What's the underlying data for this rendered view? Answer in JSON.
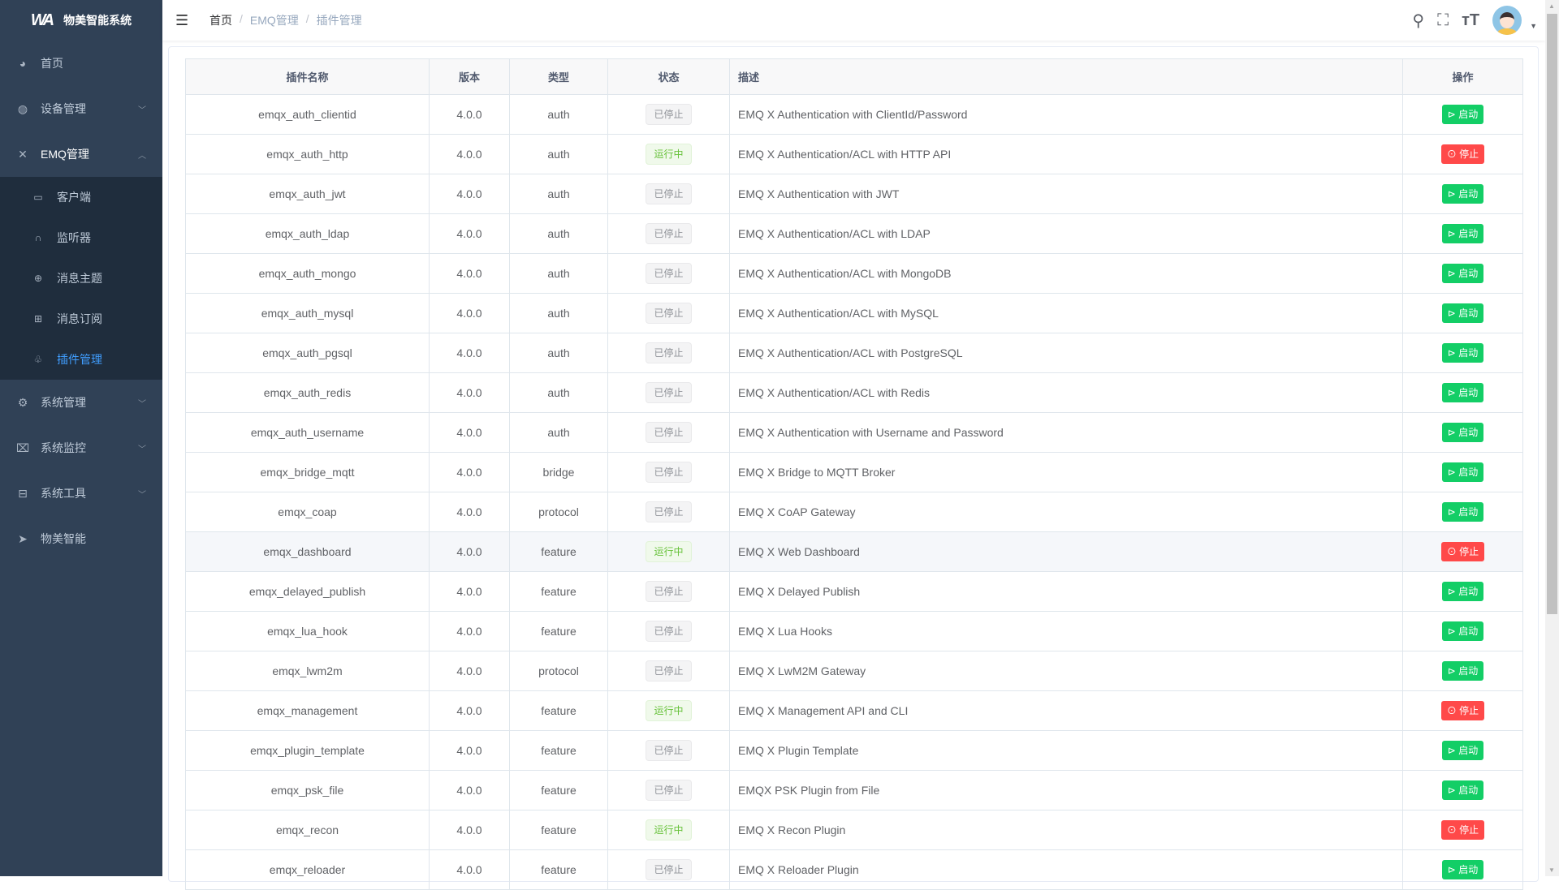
{
  "app": {
    "title": "物美智能系统",
    "logo": "WA"
  },
  "sidebar": {
    "items": [
      {
        "label": "首页",
        "icon": "dashboard-icon",
        "glyph": "◕"
      },
      {
        "label": "设备管理",
        "icon": "device-icon",
        "glyph": "◍",
        "chevron": "﹀"
      },
      {
        "label": "EMQ管理",
        "icon": "emq-icon",
        "glyph": "✕",
        "chevron": "︿",
        "open": true,
        "children": [
          {
            "label": "客户端",
            "icon": "client-icon",
            "glyph": "▭"
          },
          {
            "label": "监听器",
            "icon": "headset-icon",
            "glyph": "∩"
          },
          {
            "label": "消息主题",
            "icon": "topic-icon",
            "glyph": "⊕"
          },
          {
            "label": "消息订阅",
            "icon": "subscribe-icon",
            "glyph": "⊞"
          },
          {
            "label": "插件管理",
            "icon": "plugin-icon",
            "glyph": "♧",
            "active": true
          }
        ]
      },
      {
        "label": "系统管理",
        "icon": "gear-icon",
        "glyph": "⚙",
        "chevron": "﹀"
      },
      {
        "label": "系统监控",
        "icon": "monitor-icon",
        "glyph": "⌧",
        "chevron": "﹀"
      },
      {
        "label": "系统工具",
        "icon": "toolbox-icon",
        "glyph": "⊟",
        "chevron": "﹀"
      },
      {
        "label": "物美智能",
        "icon": "paper-plane-icon",
        "glyph": "➤"
      }
    ]
  },
  "header": {
    "breadcrumb": [
      "首页",
      "EMQ管理",
      "插件管理"
    ],
    "separator": "/"
  },
  "table": {
    "columns": [
      "插件名称",
      "版本",
      "类型",
      "状态",
      "描述",
      "操作"
    ],
    "rows": [
      [
        "emqx_auth_clientid",
        "4.0.0",
        "auth",
        "已停止",
        "EMQ X Authentication with ClientId/Password"
      ],
      [
        "emqx_auth_http",
        "4.0.0",
        "auth",
        "运行中",
        "EMQ X Authentication/ACL with HTTP API"
      ],
      [
        "emqx_auth_jwt",
        "4.0.0",
        "auth",
        "已停止",
        "EMQ X Authentication with JWT"
      ],
      [
        "emqx_auth_ldap",
        "4.0.0",
        "auth",
        "已停止",
        "EMQ X Authentication/ACL with LDAP"
      ],
      [
        "emqx_auth_mongo",
        "4.0.0",
        "auth",
        "已停止",
        "EMQ X Authentication/ACL with MongoDB"
      ],
      [
        "emqx_auth_mysql",
        "4.0.0",
        "auth",
        "已停止",
        "EMQ X Authentication/ACL with MySQL"
      ],
      [
        "emqx_auth_pgsql",
        "4.0.0",
        "auth",
        "已停止",
        "EMQ X Authentication/ACL with PostgreSQL"
      ],
      [
        "emqx_auth_redis",
        "4.0.0",
        "auth",
        "已停止",
        "EMQ X Authentication/ACL with Redis"
      ],
      [
        "emqx_auth_username",
        "4.0.0",
        "auth",
        "已停止",
        "EMQ X Authentication with Username and Password"
      ],
      [
        "emqx_bridge_mqtt",
        "4.0.0",
        "bridge",
        "已停止",
        "EMQ X Bridge to MQTT Broker"
      ],
      [
        "emqx_coap",
        "4.0.0",
        "protocol",
        "已停止",
        "EMQ X CoAP Gateway"
      ],
      [
        "emqx_dashboard",
        "4.0.0",
        "feature",
        "运行中",
        "EMQ X Web Dashboard"
      ],
      [
        "emqx_delayed_publish",
        "4.0.0",
        "feature",
        "已停止",
        "EMQ X Delayed Publish"
      ],
      [
        "emqx_lua_hook",
        "4.0.0",
        "feature",
        "已停止",
        "EMQ X Lua Hooks"
      ],
      [
        "emqx_lwm2m",
        "4.0.0",
        "protocol",
        "已停止",
        "EMQ X LwM2M Gateway"
      ],
      [
        "emqx_management",
        "4.0.0",
        "feature",
        "运行中",
        "EMQ X Management API and CLI"
      ],
      [
        "emqx_plugin_template",
        "4.0.0",
        "feature",
        "已停止",
        "EMQ X Plugin Template"
      ],
      [
        "emqx_psk_file",
        "4.0.0",
        "feature",
        "已停止",
        "EMQX PSK Plugin from File"
      ],
      [
        "emqx_recon",
        "4.0.0",
        "feature",
        "运行中",
        "EMQ X Recon Plugin"
      ],
      [
        "emqx_reloader",
        "4.0.0",
        "feature",
        "已停止",
        "EMQ X Reloader Plugin"
      ]
    ],
    "running_label": "运行中",
    "start_label": "启动",
    "stop_label": "停止"
  },
  "colors": {
    "sidebar": "#304156",
    "submenu": "#1f2d3d",
    "active": "#409eff",
    "start": "#13ce66",
    "stop": "#ff4949"
  }
}
